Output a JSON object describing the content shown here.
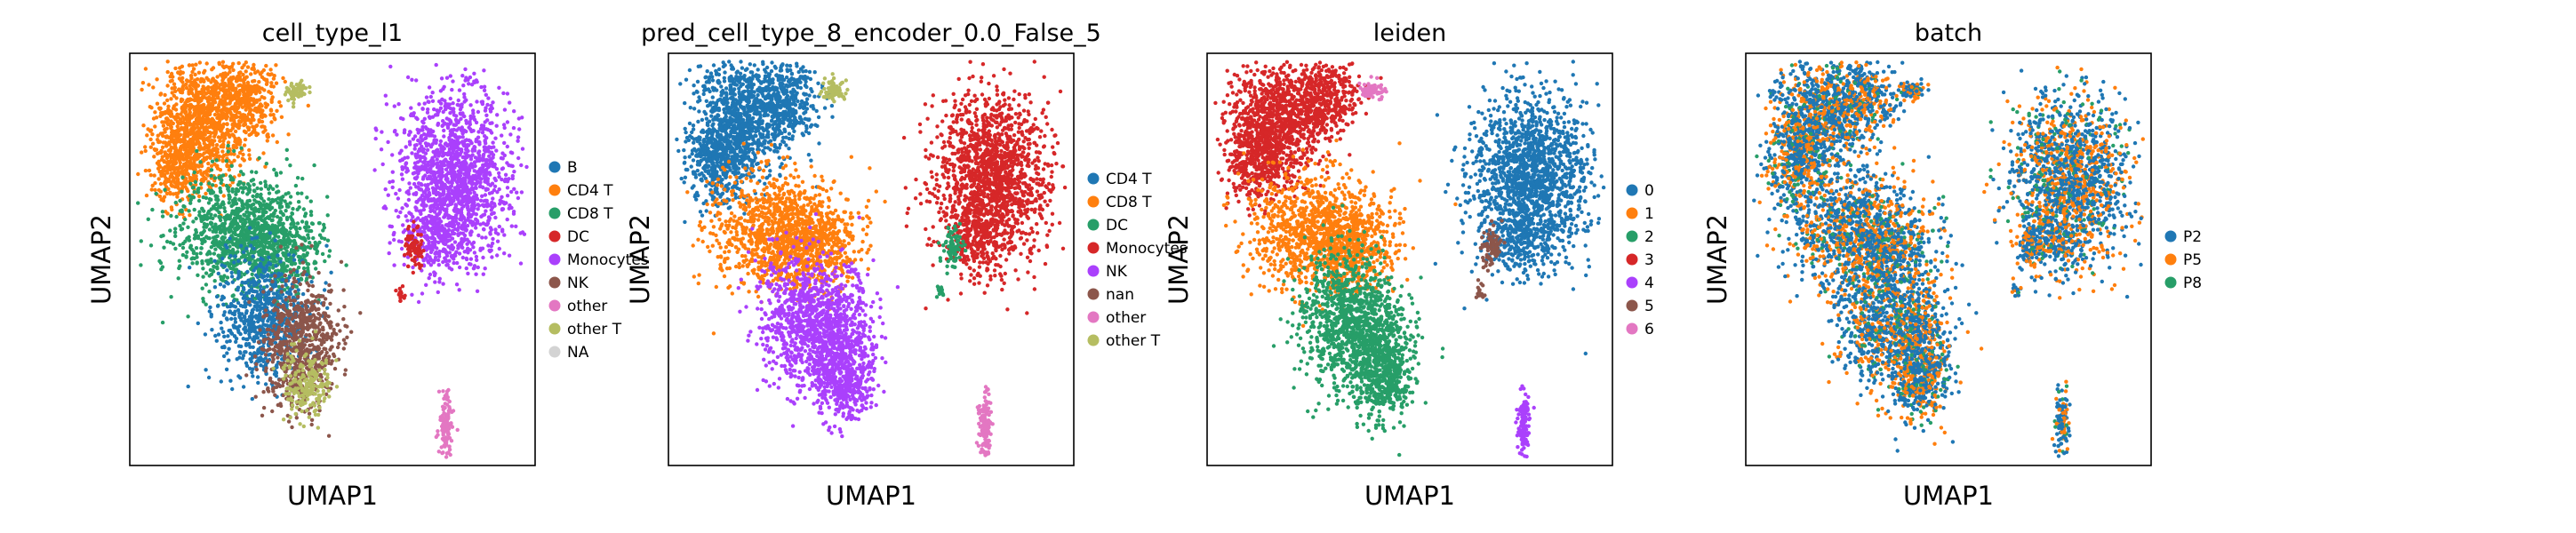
{
  "chart_data": [
    {
      "type": "scatter",
      "title": "cell_type_l1",
      "xlabel": "UMAP1",
      "ylabel": "UMAP2",
      "grid": false,
      "legend_position": "right",
      "legend": [
        {
          "label": "B",
          "color": "#1f77b4"
        },
        {
          "label": "CD4 T",
          "color": "#ff7f0e"
        },
        {
          "label": "CD8 T",
          "color": "#279e68"
        },
        {
          "label": "DC",
          "color": "#d62728"
        },
        {
          "label": "Monocytes",
          "color": "#aa40fc"
        },
        {
          "label": "NK",
          "color": "#8c564b"
        },
        {
          "label": "other",
          "color": "#e377c2"
        },
        {
          "label": "other T",
          "color": "#b5bd61"
        },
        {
          "label": "NA",
          "color": "#d3d3d3"
        }
      ]
    },
    {
      "type": "scatter",
      "title": "pred_cell_type_8_encoder_0.0_False_5",
      "xlabel": "UMAP1",
      "ylabel": "UMAP2",
      "grid": false,
      "legend_position": "right",
      "legend": [
        {
          "label": "CD4 T",
          "color": "#1f77b4"
        },
        {
          "label": "CD8 T",
          "color": "#ff7f0e"
        },
        {
          "label": "DC",
          "color": "#279e68"
        },
        {
          "label": "Monocytes",
          "color": "#d62728"
        },
        {
          "label": "NK",
          "color": "#aa40fc"
        },
        {
          "label": "nan",
          "color": "#8c564b"
        },
        {
          "label": "other",
          "color": "#e377c2"
        },
        {
          "label": "other T",
          "color": "#b5bd61"
        }
      ]
    },
    {
      "type": "scatter",
      "title": "leiden",
      "xlabel": "UMAP1",
      "ylabel": "UMAP2",
      "grid": false,
      "legend_position": "right",
      "legend": [
        {
          "label": "0",
          "color": "#1f77b4"
        },
        {
          "label": "1",
          "color": "#ff7f0e"
        },
        {
          "label": "2",
          "color": "#279e68"
        },
        {
          "label": "3",
          "color": "#d62728"
        },
        {
          "label": "4",
          "color": "#aa40fc"
        },
        {
          "label": "5",
          "color": "#8c564b"
        },
        {
          "label": "6",
          "color": "#e377c2"
        }
      ]
    },
    {
      "type": "scatter",
      "title": "batch",
      "xlabel": "UMAP1",
      "ylabel": "UMAP2",
      "grid": false,
      "legend_position": "right",
      "legend": [
        {
          "label": "P2",
          "color": "#1f77b4"
        },
        {
          "label": "P5",
          "color": "#ff7f0e"
        },
        {
          "label": "P8",
          "color": "#279e68"
        }
      ]
    }
  ]
}
